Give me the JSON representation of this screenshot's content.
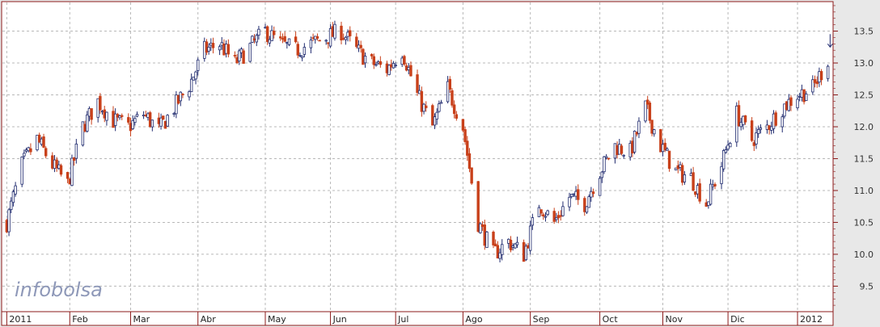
{
  "chart_data": {
    "type": "candlestick",
    "title": "",
    "xlabel": "",
    "ylabel": "",
    "ylim": [
      9.1,
      13.95
    ],
    "yticks": [
      9.5,
      10.0,
      10.5,
      11.0,
      11.5,
      12.0,
      12.5,
      13.0,
      13.5
    ],
    "ytick_labels": [
      "9.5",
      "10.0",
      "10.5",
      "11.0",
      "11.5",
      "12.0",
      "12.5",
      "13.0",
      "13.5"
    ],
    "x_range": [
      "2011-01-01",
      "2012-01-18"
    ],
    "x_labels": [
      {
        "label": "2011",
        "date": "2011-01-03"
      },
      {
        "label": "Feb",
        "date": "2011-02-01"
      },
      {
        "label": "Mar",
        "date": "2011-03-01"
      },
      {
        "label": "Abr",
        "date": "2011-04-01"
      },
      {
        "label": "May",
        "date": "2011-05-02"
      },
      {
        "label": "Jun",
        "date": "2011-06-01"
      },
      {
        "label": "Jul",
        "date": "2011-07-01"
      },
      {
        "label": "Ago",
        "date": "2011-08-01"
      },
      {
        "label": "Sep",
        "date": "2011-09-01"
      },
      {
        "label": "Oct",
        "date": "2011-10-03"
      },
      {
        "label": "Nov",
        "date": "2011-11-01"
      },
      {
        "label": "Dic",
        "date": "2011-12-01"
      },
      {
        "label": "2012",
        "date": "2012-01-02"
      }
    ],
    "grid": true,
    "up_color": "#1f2a6e",
    "down_color": "#c8401a",
    "watermark": "infobolsa",
    "close_series": [
      [
        "2011-01-03",
        10.5
      ],
      [
        "2011-01-10",
        11.4
      ],
      [
        "2011-01-17",
        11.8
      ],
      [
        "2011-01-24",
        11.4
      ],
      [
        "2011-01-31",
        11.1
      ],
      [
        "2011-02-07",
        12.0
      ],
      [
        "2011-02-14",
        12.4
      ],
      [
        "2011-02-21",
        12.1
      ],
      [
        "2011-02-28",
        12.0
      ],
      [
        "2011-03-07",
        12.2
      ],
      [
        "2011-03-14",
        11.95
      ],
      [
        "2011-03-21",
        12.3
      ],
      [
        "2011-03-28",
        12.65
      ],
      [
        "2011-04-04",
        13.2
      ],
      [
        "2011-04-11",
        13.3
      ],
      [
        "2011-04-18",
        13.0
      ],
      [
        "2011-04-25",
        13.25
      ],
      [
        "2011-05-02",
        13.5
      ],
      [
        "2011-05-09",
        13.3
      ],
      [
        "2011-05-16",
        13.2
      ],
      [
        "2011-05-23",
        13.3
      ],
      [
        "2011-05-30",
        13.4
      ],
      [
        "2011-06-06",
        13.5
      ],
      [
        "2011-06-13",
        13.2
      ],
      [
        "2011-06-20",
        13.0
      ],
      [
        "2011-06-27",
        12.9
      ],
      [
        "2011-07-04",
        13.2
      ],
      [
        "2011-07-11",
        12.5
      ],
      [
        "2011-07-18",
        12.0
      ],
      [
        "2011-07-25",
        12.6
      ],
      [
        "2011-08-01",
        12.0
      ],
      [
        "2011-08-08",
        10.5
      ],
      [
        "2011-08-15",
        10.0
      ],
      [
        "2011-08-22",
        10.2
      ],
      [
        "2011-08-29",
        10.0
      ],
      [
        "2011-09-05",
        10.8
      ],
      [
        "2011-09-12",
        10.5
      ],
      [
        "2011-09-19",
        10.9
      ],
      [
        "2011-09-26",
        10.8
      ],
      [
        "2011-10-03",
        11.3
      ],
      [
        "2011-10-10",
        11.7
      ],
      [
        "2011-10-17",
        11.6
      ],
      [
        "2011-10-24",
        12.3
      ],
      [
        "2011-10-31",
        11.7
      ],
      [
        "2011-11-07",
        11.3
      ],
      [
        "2011-11-14",
        11.2
      ],
      [
        "2011-11-21",
        10.8
      ],
      [
        "2011-11-28",
        11.4
      ],
      [
        "2011-12-05",
        12.2
      ],
      [
        "2011-12-12",
        11.8
      ],
      [
        "2011-12-19",
        12.0
      ],
      [
        "2011-12-26",
        12.3
      ],
      [
        "2012-01-02",
        12.5
      ],
      [
        "2012-01-09",
        12.6
      ],
      [
        "2012-01-16",
        13.05
      ]
    ],
    "last_marker": {
      "date": "2012-01-17",
      "value": 13.25
    }
  }
}
